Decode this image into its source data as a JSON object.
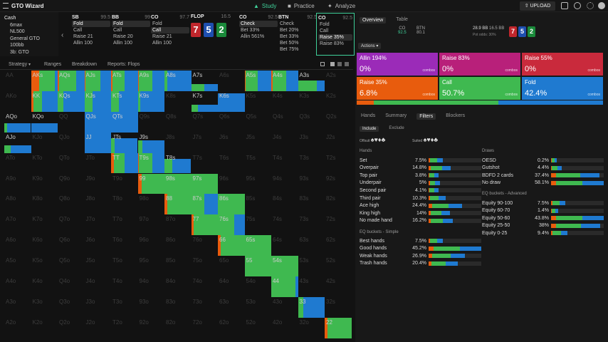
{
  "app": {
    "title": "GTO Wizard",
    "nav": [
      "Study",
      "Practice",
      "Analyze"
    ],
    "upload": "UPLOAD"
  },
  "game": {
    "lines": [
      "Cash",
      "6max",
      "NL500",
      "General GTO",
      "100bb",
      "3b: GTO"
    ]
  },
  "positions": [
    {
      "name": "SB",
      "stack": "99.5",
      "actions": [
        "Fold",
        "Call",
        "Raise 21",
        "Allin 100"
      ],
      "sel": 0
    },
    {
      "name": "BB",
      "stack": "99",
      "actions": [
        "Fold",
        "Call",
        "Raise 20",
        "Allin 100"
      ],
      "sel": 0
    },
    {
      "name": "CO",
      "stack": "97.7",
      "actions": [
        "Fold",
        "Call",
        "Raise 21",
        "Allin 100"
      ],
      "sel": 1
    },
    {
      "name": "CO",
      "stack": "92.5",
      "actions": [
        "Check",
        "Bet 33%",
        "Allin 561%"
      ],
      "sel": 0
    },
    {
      "name": "BTN",
      "stack": "92.5",
      "actions": [
        "Check",
        "Bet 20%",
        "Bet 33%",
        "Bet 50%",
        "Bet 75%"
      ],
      "sel": -1
    },
    {
      "name": "CO",
      "stack": "92.5",
      "actions": [
        "Fold",
        "Call",
        "Raise 35%",
        "Raise 83%"
      ],
      "sel": 2
    }
  ],
  "flop": {
    "label": "FLOP",
    "pot": "16.5",
    "cards": [
      {
        "r": "7",
        "c": "red"
      },
      {
        "r": "5",
        "c": "blue"
      },
      {
        "r": "2",
        "c": "green"
      }
    ]
  },
  "subnav": [
    "Strategy",
    "Ranges",
    "Breakdown",
    "Reports: Flops"
  ],
  "hands": [
    [
      "AA",
      "AKs",
      "AQs",
      "AJs",
      "ATs",
      "A9s",
      "A8s",
      "A7s",
      "A6s",
      "A5s",
      "A4s",
      "A3s",
      "A2s"
    ],
    [
      "AKo",
      "KK",
      "KQs",
      "KJs",
      "KTs",
      "K9s",
      "K8s",
      "K7s",
      "K6s",
      "K5s",
      "K4s",
      "K3s",
      "K2s"
    ],
    [
      "AQo",
      "KQo",
      "QQ",
      "QJs",
      "QTs",
      "Q9s",
      "Q8s",
      "Q7s",
      "Q6s",
      "Q5s",
      "Q4s",
      "Q3s",
      "Q2s"
    ],
    [
      "AJo",
      "KJo",
      "QJo",
      "JJ",
      "JTs",
      "J9s",
      "J8s",
      "J7s",
      "J6s",
      "J5s",
      "J4s",
      "J3s",
      "J2s"
    ],
    [
      "ATo",
      "KTo",
      "QTo",
      "JTo",
      "TT",
      "T9s",
      "T8s",
      "T7s",
      "T6s",
      "T5s",
      "T4s",
      "T3s",
      "T2s"
    ],
    [
      "A9o",
      "K9o",
      "Q9o",
      "J9o",
      "T9o",
      "99",
      "98s",
      "97s",
      "96s",
      "95s",
      "94s",
      "93s",
      "92s"
    ],
    [
      "A8o",
      "K8o",
      "Q8o",
      "J8o",
      "T8o",
      "98o",
      "88",
      "87s",
      "86s",
      "85s",
      "84s",
      "83s",
      "82s"
    ],
    [
      "A7o",
      "K7o",
      "Q7o",
      "J7o",
      "T7o",
      "97o",
      "87o",
      "77",
      "76s",
      "75s",
      "74s",
      "73s",
      "72s"
    ],
    [
      "A6o",
      "K6o",
      "Q6o",
      "J6o",
      "T6o",
      "96o",
      "86o",
      "76o",
      "66",
      "65s",
      "64s",
      "63s",
      "62s"
    ],
    [
      "A5o",
      "K5o",
      "Q5o",
      "J5o",
      "T5o",
      "95o",
      "85o",
      "75o",
      "65o",
      "55",
      "54s",
      "53s",
      "52s"
    ],
    [
      "A4o",
      "K4o",
      "Q4o",
      "J4o",
      "T4o",
      "94o",
      "84o",
      "74o",
      "64o",
      "54o",
      "44",
      "43s",
      "42s"
    ],
    [
      "A3o",
      "K3o",
      "Q3o",
      "J3o",
      "T3o",
      "93o",
      "83o",
      "73o",
      "63o",
      "53o",
      "43o",
      "33",
      "32s"
    ],
    [
      "A2o",
      "K2o",
      "Q2o",
      "J2o",
      "T2o",
      "92o",
      "82o",
      "72o",
      "62o",
      "52o",
      "42o",
      "32o",
      "22"
    ]
  ],
  "right": {
    "tabs": [
      "Overview",
      "Table"
    ],
    "summary": {
      "pos1": "CO",
      "v1": "92.5",
      "pos2": "BTN",
      "v2": "80.1",
      "pot": "28.9 BB",
      "eff": "16.5 BB",
      "odds": "Pot odds: 30%",
      "cards": [
        "7",
        "5",
        "2"
      ]
    },
    "actions_btn": "Actions",
    "actions": [
      {
        "name": "Allin 194%",
        "pct": "0%",
        "combos": "combos",
        "color": "#9b2bb8"
      },
      {
        "name": "Raise 83%",
        "pct": "0%",
        "combos": "combos",
        "color": "#b8207a"
      },
      {
        "name": "Raise 55%",
        "pct": "0%",
        "combos": "combos",
        "color": "#c92a3c"
      },
      {
        "name": "Raise 35%",
        "pct": "6.8%",
        "combos": "combos",
        "color": "#e85c0d"
      },
      {
        "name": "Call",
        "pct": "50.7%",
        "combos": "combos",
        "color": "#3fb950"
      },
      {
        "name": "Fold",
        "pct": "42.4%",
        "combos": "combos",
        "color": "#1f7ad0"
      }
    ],
    "subtabs": [
      "Hands",
      "Summary",
      "Filters",
      "Blockers"
    ],
    "incl": [
      "Include",
      "Exclude"
    ],
    "offsuit": "Offsuit",
    "suited": "Suited",
    "hands_title": "Hands",
    "hand_rows": [
      [
        "Set",
        "7.5%"
      ],
      [
        "Overpair",
        "14.8%"
      ],
      [
        "Top pair",
        "3.8%"
      ],
      [
        "Underpair",
        "5%"
      ],
      [
        "Second pair",
        "4.1%"
      ],
      [
        "Third pair",
        "10.3%"
      ],
      [
        "Ace high",
        "24.4%"
      ],
      [
        "King high",
        "14%"
      ],
      [
        "No made hand",
        "16.2%"
      ]
    ],
    "draws_title": "Draws",
    "draw_rows": [
      [
        "OESD",
        "0.2%"
      ],
      [
        "Gutshot",
        "4.4%"
      ],
      [
        "BDFD 2 cards",
        "37.4%"
      ],
      [
        "No draw",
        "58.1%"
      ]
    ],
    "eq_title": "EQ buckets - Advanced",
    "eq_rows": [
      [
        "Equity 90-100",
        "7.5%"
      ],
      [
        "Equity 60-70",
        "1.4%"
      ],
      [
        "Equity 50-60",
        "43.8%"
      ],
      [
        "Equity 25-50",
        "38%"
      ],
      [
        "Equity 0-25",
        "9.4%"
      ]
    ],
    "simple_title": "EQ buckets - Simple",
    "simple_rows": [
      [
        "Best hands",
        "7.5%"
      ],
      [
        "Good hands",
        "45.2%"
      ],
      [
        "Weak hands",
        "26.9%"
      ],
      [
        "Trash hands",
        "20.4%"
      ]
    ]
  },
  "colors": {
    "accent": "#3fd19a",
    "fold": "#1f7ad0",
    "call": "#3fb950",
    "raise": "#e85c0d"
  }
}
